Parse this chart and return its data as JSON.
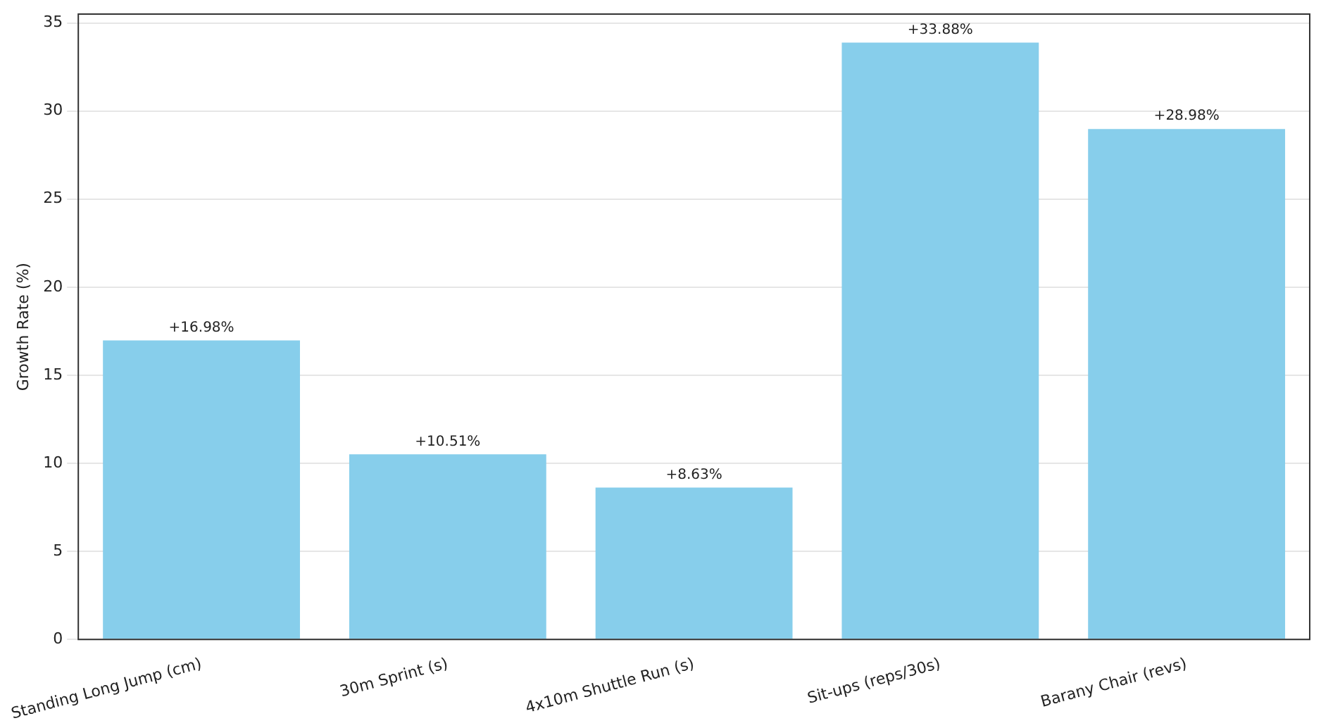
{
  "chart_data": {
    "type": "bar",
    "ylabel": "Growth Rate (%)",
    "categories": [
      "Standing Long Jump (cm)",
      "30m Sprint (s)",
      "4x10m Shuttle Run (s)",
      "Sit-ups (reps/30s)",
      "Barany Chair (revs)"
    ],
    "values": [
      16.98,
      10.51,
      8.63,
      33.88,
      28.98
    ],
    "value_labels": [
      "+16.98%",
      "+10.51%",
      "+8.63%",
      "+33.88%",
      "+28.98%"
    ],
    "color": "#87ceeb",
    "ylim": [
      0,
      35.5
    ],
    "yticks": [
      0,
      5,
      10,
      15,
      20,
      25,
      30,
      35
    ],
    "grid": "y"
  }
}
